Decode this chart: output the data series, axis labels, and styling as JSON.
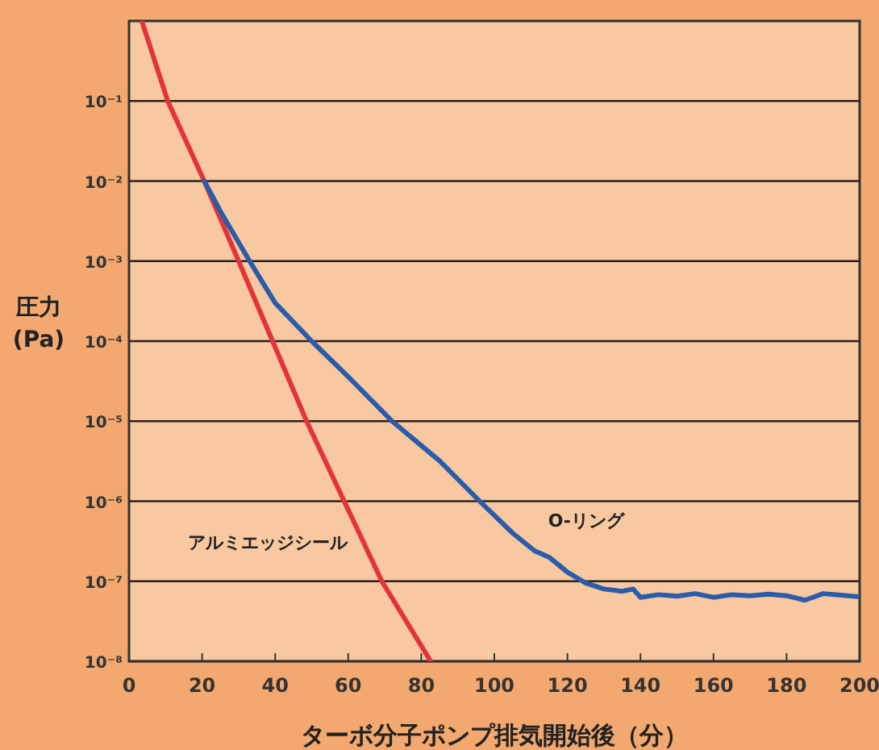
{
  "chart_data": {
    "type": "line",
    "xlabel": "ターボ分子ポンプ排気開始後（分）",
    "ylabel": "圧力\n(Pa)",
    "log": "y",
    "grid": "y",
    "xlim": [
      0,
      200
    ],
    "ylim": [
      1e-08,
      1
    ],
    "xticks": [
      0,
      20,
      40,
      60,
      80,
      100,
      120,
      140,
      160,
      180,
      200
    ],
    "yticks": [
      {
        "value": 1e-08,
        "label": "10⁻⁸"
      },
      {
        "value": 1e-07,
        "label": "10⁻⁷"
      },
      {
        "value": 1e-06,
        "label": "10⁻⁶"
      },
      {
        "value": 1e-05,
        "label": "10⁻⁵"
      },
      {
        "value": 0.0001,
        "label": "10⁻⁴"
      },
      {
        "value": 0.001,
        "label": "10⁻³"
      },
      {
        "value": 0.01,
        "label": "10⁻²"
      },
      {
        "value": 0.1,
        "label": "10⁻¹"
      }
    ],
    "series": [
      {
        "name": "アルミエッジシール",
        "color": "#e2343a",
        "x": [
          3.5,
          10.6,
          20.6,
          30,
          39.3,
          48.6,
          58.9,
          69.2,
          82.6
        ],
        "values": [
          1,
          0.1,
          0.01,
          0.001,
          0.0001,
          1e-05,
          1e-06,
          1e-07,
          1e-08
        ]
      },
      {
        "name": "O-リング",
        "color": "#2a5caa",
        "x": [
          20.6,
          25,
          33,
          40,
          50,
          60,
          72,
          85,
          96,
          105,
          111,
          115,
          120,
          125,
          130,
          135,
          138,
          140,
          145,
          150,
          155,
          160,
          165,
          170,
          175,
          180,
          185,
          190,
          195,
          200
        ],
        "values": [
          0.01,
          0.0042,
          0.001,
          0.0003,
          0.0001,
          3.6e-05,
          1e-05,
          3.2e-06,
          1e-06,
          4e-07,
          2.4e-07,
          2e-07,
          1.3e-07,
          9.5e-08,
          8e-08,
          7.5e-08,
          8e-08,
          6.3e-08,
          6.8e-08,
          6.5e-08,
          7e-08,
          6.3e-08,
          6.8e-08,
          6.6e-08,
          6.9e-08,
          6.6e-08,
          5.8e-08,
          7e-08,
          6.7e-08,
          6.4e-08
        ]
      }
    ]
  }
}
